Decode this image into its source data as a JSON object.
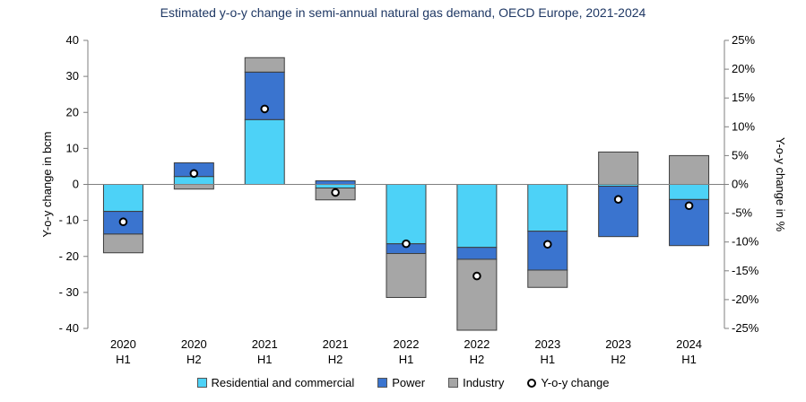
{
  "chart_data": {
    "type": "bar",
    "title": "Estimated y-o-y change in semi-annual natural gas demand, OECD Europe, 2021-2024",
    "ylabel": "Y-o-y change in bcm",
    "y2label": "Y-o-y change in %",
    "ylim": [
      -40,
      40
    ],
    "y2lim": [
      -25,
      25
    ],
    "yticks": [
      40,
      30,
      20,
      10,
      0,
      -10,
      -20,
      -30,
      -40
    ],
    "ytick_labels": [
      "40",
      "30",
      "20",
      "10",
      "0",
      "- 10",
      "- 20",
      "- 30",
      "- 40"
    ],
    "y2ticks": [
      25,
      20,
      15,
      10,
      5,
      0,
      -5,
      -10,
      -15,
      -20,
      -25
    ],
    "y2tick_labels": [
      "25%",
      "20%",
      "15%",
      "10%",
      "5%",
      "0%",
      "-5%",
      "-10%",
      "-15%",
      "-20%",
      "-25%"
    ],
    "categories": [
      [
        "2020",
        "H1"
      ],
      [
        "2020",
        "H2"
      ],
      [
        "2021",
        "H1"
      ],
      [
        "2021",
        "H2"
      ],
      [
        "2022",
        "H1"
      ],
      [
        "2022",
        "H2"
      ],
      [
        "2023",
        "H1"
      ],
      [
        "2023",
        "H2"
      ],
      [
        "2024",
        "H1"
      ]
    ],
    "stacked": true,
    "grid": false,
    "legend_position": "bottom",
    "series": [
      {
        "name": "Residential and commercial",
        "color": "#4dd2f7",
        "values": [
          -7.5,
          2.2,
          18.0,
          -1.0,
          -16.5,
          -17.5,
          -13.0,
          -0.5,
          -4.2
        ]
      },
      {
        "name": "Power",
        "color": "#3a74cf",
        "values": [
          -6.3,
          3.8,
          13.2,
          1.0,
          -2.7,
          -3.3,
          -10.8,
          -14.0,
          -12.8
        ]
      },
      {
        "name": "Industry",
        "color": "#a6a6a6",
        "values": [
          -5.2,
          -1.3,
          4.0,
          -3.3,
          -12.2,
          -19.7,
          -4.8,
          9.0,
          8.0
        ]
      }
    ],
    "yoy_change": {
      "name": "Y-o-y change",
      "values_pct": [
        -6.5,
        1.9,
        13.1,
        -1.4,
        -10.3,
        -15.9,
        -10.4,
        -2.6,
        -3.7
      ]
    }
  }
}
